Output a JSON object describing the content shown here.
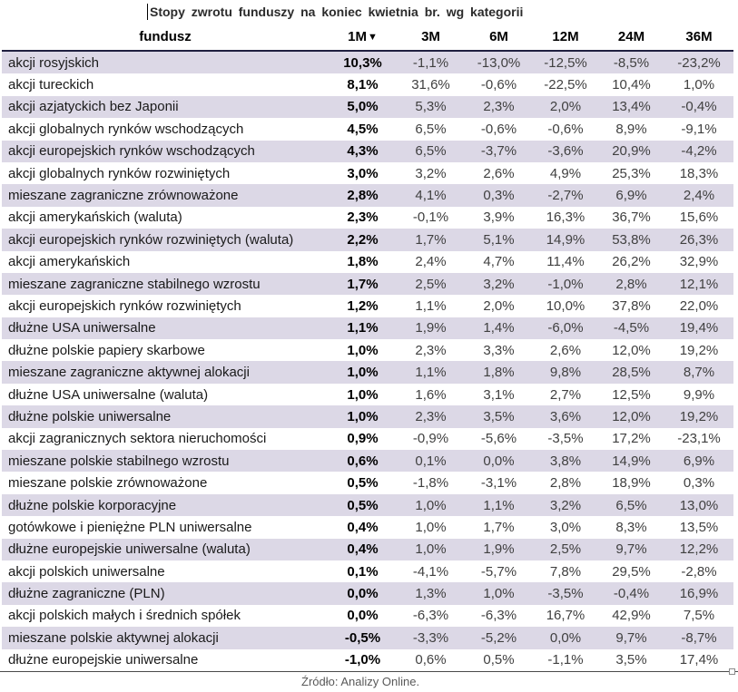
{
  "title": "Stopy zwrotu funduszy na koniec kwietnia br. wg kategorii",
  "source": "Źródło: Analizy Online.",
  "colors": {
    "row_alt": "#dcd8e6",
    "row_base": "#ffffff",
    "header_border": "#202040",
    "bottom_rule": "#4a4a4a",
    "value_text": "#404040"
  },
  "chart_data": {
    "type": "table",
    "title": "Stopy zwrotu funduszy na koniec kwietnia br. wg kategorii",
    "columns": [
      "fundusz",
      "1M",
      "3M",
      "6M",
      "12M",
      "24M",
      "36M"
    ],
    "sort": {
      "column": "1M",
      "direction": "desc",
      "icon": "▼"
    },
    "rows": [
      {
        "name": "akcji rosyjskich",
        "values": [
          "10,3%",
          "-1,1%",
          "-13,0%",
          "-12,5%",
          "-8,5%",
          "-23,2%"
        ]
      },
      {
        "name": "akcji tureckich",
        "values": [
          "8,1%",
          "31,6%",
          "-0,6%",
          "-22,5%",
          "10,4%",
          "1,0%"
        ]
      },
      {
        "name": "akcji azjatyckich bez Japonii",
        "values": [
          "5,0%",
          "5,3%",
          "2,3%",
          "2,0%",
          "13,4%",
          "-0,4%"
        ]
      },
      {
        "name": "akcji globalnych rynków wschodzących",
        "values": [
          "4,5%",
          "6,5%",
          "-0,6%",
          "-0,6%",
          "8,9%",
          "-9,1%"
        ]
      },
      {
        "name": "akcji europejskich rynków wschodzących",
        "values": [
          "4,3%",
          "6,5%",
          "-3,7%",
          "-3,6%",
          "20,9%",
          "-4,2%"
        ]
      },
      {
        "name": "akcji globalnych rynków rozwiniętych",
        "values": [
          "3,0%",
          "3,2%",
          "2,6%",
          "4,9%",
          "25,3%",
          "18,3%"
        ]
      },
      {
        "name": "mieszane zagraniczne zrównoważone",
        "values": [
          "2,8%",
          "4,1%",
          "0,3%",
          "-2,7%",
          "6,9%",
          "2,4%"
        ]
      },
      {
        "name": "akcji amerykańskich (waluta)",
        "values": [
          "2,3%",
          "-0,1%",
          "3,9%",
          "16,3%",
          "36,7%",
          "15,6%"
        ]
      },
      {
        "name": "akcji europejskich rynków rozwiniętych (waluta)",
        "values": [
          "2,2%",
          "1,7%",
          "5,1%",
          "14,9%",
          "53,8%",
          "26,3%"
        ]
      },
      {
        "name": "akcji amerykańskich",
        "values": [
          "1,8%",
          "2,4%",
          "4,7%",
          "11,4%",
          "26,2%",
          "32,9%"
        ]
      },
      {
        "name": "mieszane zagraniczne stabilnego wzrostu",
        "values": [
          "1,7%",
          "2,5%",
          "3,2%",
          "-1,0%",
          "2,8%",
          "12,1%"
        ]
      },
      {
        "name": "akcji europejskich rynków rozwiniętych",
        "values": [
          "1,2%",
          "1,1%",
          "2,0%",
          "10,0%",
          "37,8%",
          "22,0%"
        ]
      },
      {
        "name": "dłużne USA uniwersalne",
        "values": [
          "1,1%",
          "1,9%",
          "1,4%",
          "-6,0%",
          "-4,5%",
          "19,4%"
        ]
      },
      {
        "name": "dłużne polskie papiery skarbowe",
        "values": [
          "1,0%",
          "2,3%",
          "3,3%",
          "2,6%",
          "12,0%",
          "19,2%"
        ]
      },
      {
        "name": "mieszane zagraniczne aktywnej alokacji",
        "values": [
          "1,0%",
          "1,1%",
          "1,8%",
          "9,8%",
          "28,5%",
          "8,7%"
        ]
      },
      {
        "name": "dłużne USA uniwersalne (waluta)",
        "values": [
          "1,0%",
          "1,6%",
          "3,1%",
          "2,7%",
          "12,5%",
          "9,9%"
        ]
      },
      {
        "name": "dłużne polskie uniwersalne",
        "values": [
          "1,0%",
          "2,3%",
          "3,5%",
          "3,6%",
          "12,0%",
          "19,2%"
        ]
      },
      {
        "name": "akcji zagranicznych sektora nieruchomości",
        "values": [
          "0,9%",
          "-0,9%",
          "-5,6%",
          "-3,5%",
          "17,2%",
          "-23,1%"
        ]
      },
      {
        "name": "mieszane polskie stabilnego wzrostu",
        "values": [
          "0,6%",
          "0,1%",
          "0,0%",
          "3,8%",
          "14,9%",
          "6,9%"
        ]
      },
      {
        "name": "mieszane polskie zrównoważone",
        "values": [
          "0,5%",
          "-1,8%",
          "-3,1%",
          "2,8%",
          "18,9%",
          "0,3%"
        ]
      },
      {
        "name": "dłużne polskie korporacyjne",
        "values": [
          "0,5%",
          "1,0%",
          "1,1%",
          "3,2%",
          "6,5%",
          "13,0%"
        ]
      },
      {
        "name": "gotówkowe i pieniężne PLN uniwersalne",
        "values": [
          "0,4%",
          "1,0%",
          "1,7%",
          "3,0%",
          "8,3%",
          "13,5%"
        ]
      },
      {
        "name": "dłużne europejskie uniwersalne (waluta)",
        "values": [
          "0,4%",
          "1,0%",
          "1,9%",
          "2,5%",
          "9,7%",
          "12,2%"
        ]
      },
      {
        "name": "akcji polskich uniwersalne",
        "values": [
          "0,1%",
          "-4,1%",
          "-5,7%",
          "7,8%",
          "29,5%",
          "-2,8%"
        ]
      },
      {
        "name": "dłużne zagraniczne (PLN)",
        "values": [
          "0,0%",
          "1,3%",
          "1,0%",
          "-3,5%",
          "-0,4%",
          "16,9%"
        ]
      },
      {
        "name": "akcji polskich małych i średnich spółek",
        "values": [
          "0,0%",
          "-6,3%",
          "-6,3%",
          "16,7%",
          "42,9%",
          "7,5%"
        ]
      },
      {
        "name": "mieszane polskie aktywnej alokacji",
        "values": [
          "-0,5%",
          "-3,3%",
          "-5,2%",
          "0,0%",
          "9,7%",
          "-8,7%"
        ]
      },
      {
        "name": "dłużne europejskie uniwersalne",
        "values": [
          "-1,0%",
          "0,6%",
          "0,5%",
          "-1,1%",
          "3,5%",
          "17,4%"
        ]
      }
    ],
    "source": "Źródło: Analizy Online."
  }
}
